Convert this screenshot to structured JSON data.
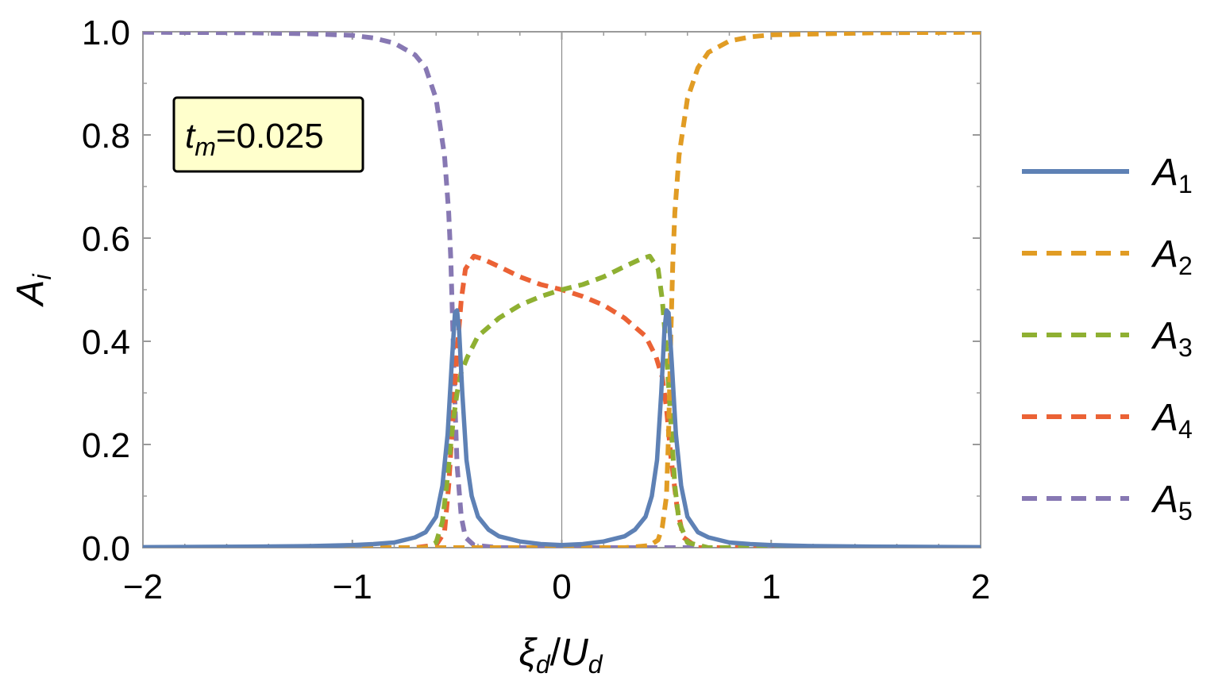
{
  "chart_data": {
    "type": "line",
    "xlim": [
      -2,
      2
    ],
    "ylim": [
      0,
      1
    ],
    "x_ticks": [
      {
        "value": -2,
        "label": "−2"
      },
      {
        "value": -1,
        "label": "−1"
      },
      {
        "value": 0,
        "label": "0"
      },
      {
        "value": 1,
        "label": "1"
      },
      {
        "value": 2,
        "label": "2"
      }
    ],
    "y_ticks": [
      {
        "value": 0,
        "label": "0.0"
      },
      {
        "value": 0.2,
        "label": "0.2"
      },
      {
        "value": 0.4,
        "label": "0.4"
      },
      {
        "value": 0.6,
        "label": "0.6"
      },
      {
        "value": 0.8,
        "label": "0.8"
      },
      {
        "value": 1.0,
        "label": "1.0"
      }
    ],
    "xlabel": {
      "main1": "ξ",
      "sub1": "d",
      "slash": "/",
      "main2": "U",
      "sub2": "d"
    },
    "ylabel": {
      "main": "A",
      "sub": "i"
    },
    "annotation": {
      "main": "t",
      "sub": "m",
      "rest": "=0.025"
    },
    "legend_position": "right",
    "grid": false,
    "vertical_reference_line_at": 0,
    "series": [
      {
        "name": "A",
        "sub": "1",
        "style": "solid",
        "color": "#5e81b5",
        "points": [
          [
            -2,
            0.001
          ],
          [
            -1.5,
            0.002
          ],
          [
            -1.2,
            0.003
          ],
          [
            -1.0,
            0.005
          ],
          [
            -0.9,
            0.007
          ],
          [
            -0.8,
            0.01
          ],
          [
            -0.7,
            0.02
          ],
          [
            -0.65,
            0.03
          ],
          [
            -0.6,
            0.06
          ],
          [
            -0.57,
            0.12
          ],
          [
            -0.545,
            0.22
          ],
          [
            -0.525,
            0.36
          ],
          [
            -0.51,
            0.455
          ],
          [
            -0.5,
            0.46
          ],
          [
            -0.49,
            0.42
          ],
          [
            -0.475,
            0.3
          ],
          [
            -0.455,
            0.17
          ],
          [
            -0.43,
            0.1
          ],
          [
            -0.4,
            0.06
          ],
          [
            -0.35,
            0.035
          ],
          [
            -0.3,
            0.022
          ],
          [
            -0.2,
            0.012
          ],
          [
            -0.1,
            0.007
          ],
          [
            0,
            0.005
          ],
          [
            0.1,
            0.007
          ],
          [
            0.2,
            0.012
          ],
          [
            0.3,
            0.022
          ],
          [
            0.35,
            0.035
          ],
          [
            0.4,
            0.06
          ],
          [
            0.43,
            0.1
          ],
          [
            0.455,
            0.17
          ],
          [
            0.475,
            0.3
          ],
          [
            0.49,
            0.42
          ],
          [
            0.5,
            0.46
          ],
          [
            0.51,
            0.455
          ],
          [
            0.525,
            0.36
          ],
          [
            0.545,
            0.22
          ],
          [
            0.57,
            0.12
          ],
          [
            0.6,
            0.06
          ],
          [
            0.65,
            0.03
          ],
          [
            0.7,
            0.02
          ],
          [
            0.8,
            0.01
          ],
          [
            0.9,
            0.007
          ],
          [
            1.0,
            0.005
          ],
          [
            1.2,
            0.003
          ],
          [
            1.5,
            0.002
          ],
          [
            2,
            0.001
          ]
        ]
      },
      {
        "name": "A",
        "sub": "2",
        "style": "dashed",
        "color": "#e19c24",
        "points": [
          [
            -2,
            0
          ],
          [
            0.3,
            0
          ],
          [
            0.42,
            0.004
          ],
          [
            0.46,
            0.015
          ],
          [
            0.48,
            0.04
          ],
          [
            0.5,
            0.1
          ],
          [
            0.51,
            0.22
          ],
          [
            0.52,
            0.4
          ],
          [
            0.53,
            0.55
          ],
          [
            0.54,
            0.65
          ],
          [
            0.56,
            0.76
          ],
          [
            0.6,
            0.87
          ],
          [
            0.65,
            0.93
          ],
          [
            0.7,
            0.96
          ],
          [
            0.8,
            0.982
          ],
          [
            0.9,
            0.99
          ],
          [
            1.0,
            0.994
          ],
          [
            1.5,
            0.998
          ],
          [
            2,
            0.999
          ]
        ]
      },
      {
        "name": "A",
        "sub": "3",
        "style": "dashed",
        "color": "#8fb032",
        "points": [
          [
            -2,
            0
          ],
          [
            -0.65,
            0
          ],
          [
            -0.6,
            0.01
          ],
          [
            -0.57,
            0.05
          ],
          [
            -0.55,
            0.12
          ],
          [
            -0.52,
            0.24
          ],
          [
            -0.5,
            0.3
          ],
          [
            -0.48,
            0.34
          ],
          [
            -0.45,
            0.37
          ],
          [
            -0.4,
            0.41
          ],
          [
            -0.3,
            0.445
          ],
          [
            -0.2,
            0.47
          ],
          [
            -0.1,
            0.487
          ],
          [
            0,
            0.5
          ],
          [
            0.1,
            0.51
          ],
          [
            0.2,
            0.525
          ],
          [
            0.3,
            0.545
          ],
          [
            0.38,
            0.56
          ],
          [
            0.42,
            0.565
          ],
          [
            0.46,
            0.54
          ],
          [
            0.48,
            0.48
          ],
          [
            0.5,
            0.38
          ],
          [
            0.52,
            0.25
          ],
          [
            0.54,
            0.12
          ],
          [
            0.56,
            0.05
          ],
          [
            0.6,
            0.01
          ],
          [
            0.7,
            0
          ],
          [
            2,
            0
          ]
        ]
      },
      {
        "name": "A",
        "sub": "4",
        "style": "dashed",
        "color": "#eb6235",
        "points": [
          [
            -2,
            0
          ],
          [
            -0.7,
            0
          ],
          [
            -0.6,
            0.005
          ],
          [
            -0.56,
            0.03
          ],
          [
            -0.54,
            0.12
          ],
          [
            -0.52,
            0.25
          ],
          [
            -0.5,
            0.38
          ],
          [
            -0.48,
            0.48
          ],
          [
            -0.46,
            0.54
          ],
          [
            -0.42,
            0.565
          ],
          [
            -0.38,
            0.56
          ],
          [
            -0.3,
            0.545
          ],
          [
            -0.2,
            0.525
          ],
          [
            -0.1,
            0.51
          ],
          [
            0,
            0.5
          ],
          [
            0.1,
            0.487
          ],
          [
            0.2,
            0.47
          ],
          [
            0.3,
            0.445
          ],
          [
            0.4,
            0.41
          ],
          [
            0.45,
            0.37
          ],
          [
            0.48,
            0.33
          ],
          [
            0.5,
            0.27
          ],
          [
            0.52,
            0.18
          ],
          [
            0.55,
            0.08
          ],
          [
            0.58,
            0.02
          ],
          [
            0.65,
            0
          ],
          [
            2,
            0
          ]
        ]
      },
      {
        "name": "A",
        "sub": "5",
        "style": "dashed",
        "color": "#8778b3",
        "points": [
          [
            -2,
            0.999
          ],
          [
            -1.5,
            0.998
          ],
          [
            -1.2,
            0.996
          ],
          [
            -1.0,
            0.993
          ],
          [
            -0.9,
            0.988
          ],
          [
            -0.8,
            0.978
          ],
          [
            -0.7,
            0.955
          ],
          [
            -0.65,
            0.93
          ],
          [
            -0.6,
            0.87
          ],
          [
            -0.56,
            0.76
          ],
          [
            -0.54,
            0.65
          ],
          [
            -0.53,
            0.56
          ],
          [
            -0.52,
            0.42
          ],
          [
            -0.51,
            0.28
          ],
          [
            -0.5,
            0.16
          ],
          [
            -0.48,
            0.06
          ],
          [
            -0.46,
            0.02
          ],
          [
            -0.42,
            0.005
          ],
          [
            -0.3,
            0
          ],
          [
            2,
            0
          ]
        ]
      }
    ]
  }
}
